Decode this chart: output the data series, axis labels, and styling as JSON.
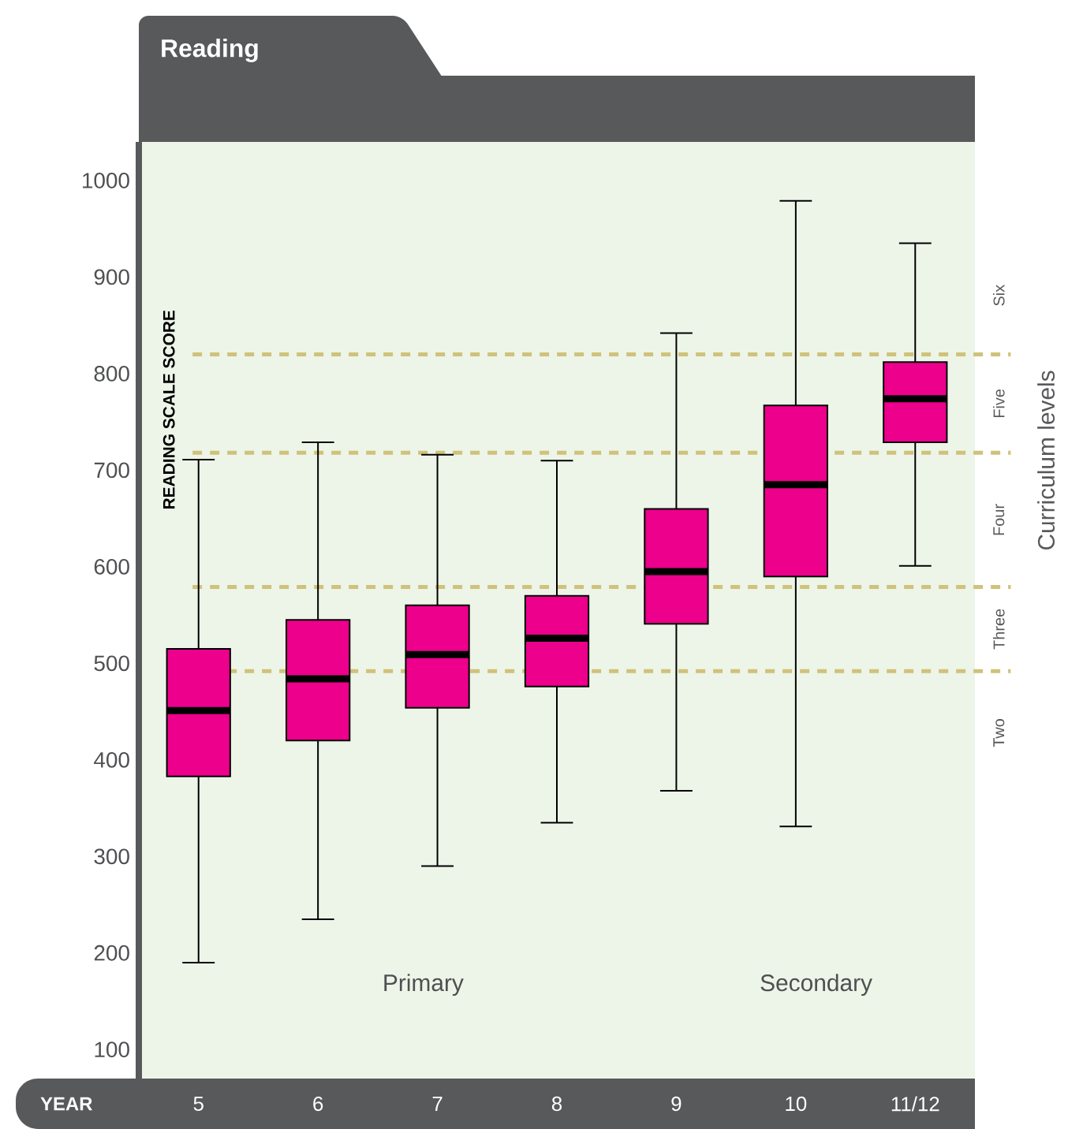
{
  "chart_data": {
    "type": "box",
    "title": "Reading",
    "xlabel": "YEAR",
    "ylabel": "READING SCALE SCORE",
    "y2label": "Curriculum levels",
    "categories": [
      "5",
      "6",
      "7",
      "8",
      "9",
      "10",
      "11/12"
    ],
    "color": "#ec008c",
    "boxes": [
      {
        "low": 190,
        "q1": 383,
        "median": 451,
        "q3": 515,
        "high": 711
      },
      {
        "low": 235,
        "q1": 420,
        "median": 484,
        "q3": 545,
        "high": 729
      },
      {
        "low": 290,
        "q1": 454,
        "median": 509,
        "q3": 560,
        "high": 716
      },
      {
        "low": 335,
        "q1": 476,
        "median": 526,
        "q3": 570,
        "high": 710
      },
      {
        "low": 368,
        "q1": 541,
        "median": 595,
        "q3": 660,
        "high": 842
      },
      {
        "low": 331,
        "q1": 590,
        "median": 685,
        "q3": 767,
        "high": 979
      },
      {
        "low": 601,
        "q1": 729,
        "median": 774,
        "q3": 812,
        "high": 935
      }
    ],
    "ylim": [
      70,
      1040
    ],
    "yticks": [
      100,
      200,
      300,
      400,
      500,
      600,
      700,
      800,
      900,
      1000
    ],
    "ref_lines": [
      {
        "axis": "y",
        "value": 492,
        "color": "#cfc27a",
        "line_style": "dashed"
      },
      {
        "axis": "y",
        "value": 579,
        "color": "#cfc27a",
        "line_style": "dashed"
      },
      {
        "axis": "y",
        "value": 718,
        "color": "#cfc27a",
        "line_style": "dashed"
      },
      {
        "axis": "y",
        "value": 820,
        "color": "#cfc27a",
        "line_style": "dashed"
      }
    ],
    "annotations": [
      "Two",
      "Three",
      "Four",
      "Five",
      "Six",
      "Primary",
      "Secondary"
    ],
    "grid": false
  }
}
